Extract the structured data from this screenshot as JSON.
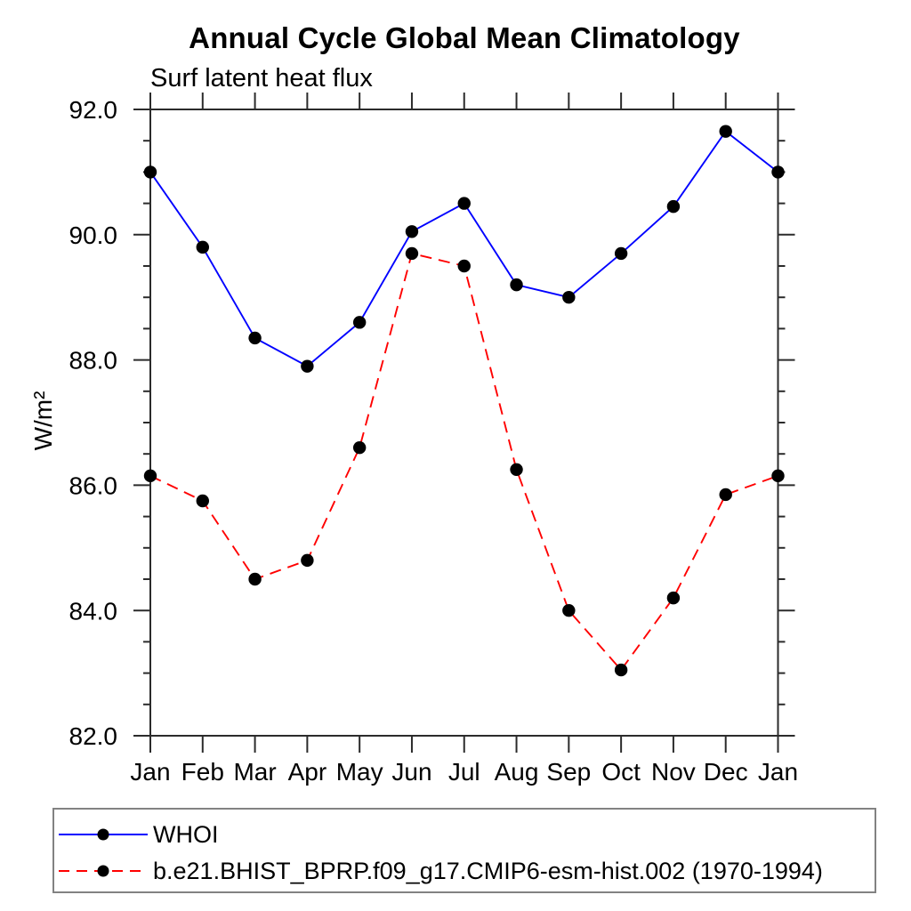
{
  "title": "Annual Cycle Global Mean Climatology",
  "subtitle": "Surf latent heat flux",
  "chart_data": {
    "type": "line",
    "x_categories": [
      "Jan",
      "Feb",
      "Mar",
      "Apr",
      "May",
      "Jun",
      "Jul",
      "Aug",
      "Sep",
      "Oct",
      "Nov",
      "Dec",
      "Jan"
    ],
    "xlabel": "",
    "ylabel": "W/m²",
    "ylim": [
      82.0,
      92.0
    ],
    "ytick_major_values": [
      82,
      84,
      86,
      88,
      90,
      92
    ],
    "ytick_labels": [
      "82.0",
      "84.0",
      "86.0",
      "88.0",
      "90.0",
      "92.0"
    ],
    "ytick_minor_step": 0.5,
    "grid": "off",
    "legend_position": "bottom-left-outside",
    "marker_color": "#000000",
    "series": [
      {
        "name": "WHOI",
        "color": "#0000ff",
        "line_style": "solid",
        "marker": "filled-circle",
        "values": [
          91.0,
          89.8,
          88.35,
          87.9,
          88.6,
          90.05,
          90.5,
          89.2,
          89.0,
          89.7,
          90.45,
          91.65,
          91.0
        ]
      },
      {
        "name": "b.e21.BHIST_BPRP.f09_g17.CMIP6-esm-hist.002 (1970-1994)",
        "color": "#ff0000",
        "line_style": "dashed",
        "marker": "filled-circle",
        "values": [
          86.15,
          85.75,
          84.5,
          84.8,
          86.6,
          89.7,
          89.5,
          86.25,
          84.0,
          83.05,
          84.2,
          85.85,
          86.15
        ]
      }
    ]
  }
}
